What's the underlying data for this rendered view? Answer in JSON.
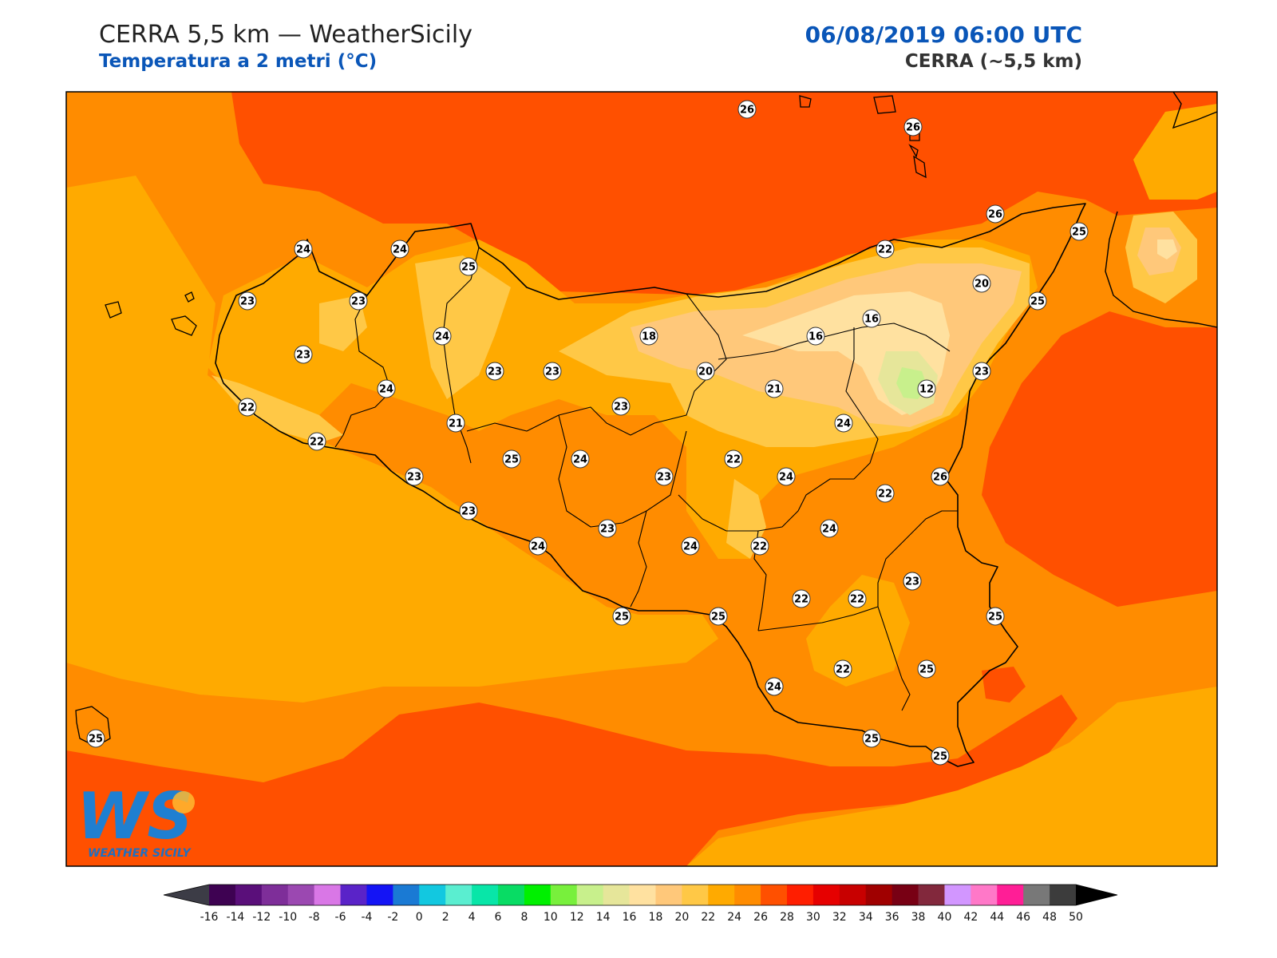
{
  "header": {
    "title": "CERRA 5,5 km — WeatherSicily",
    "subtitle": "Temperatura a 2 metri (°C)",
    "datetime": "06/08/2019 06:00 UTC",
    "model": "CERRA (~5,5 km)"
  },
  "logo": {
    "letters": "WS",
    "text": "WEATHER SICILY"
  },
  "stations": [
    {
      "value": "26"
    },
    {
      "value": "26"
    },
    {
      "value": "26"
    },
    {
      "value": "25"
    },
    {
      "value": "24"
    },
    {
      "value": "24"
    },
    {
      "value": "25"
    },
    {
      "value": "22"
    },
    {
      "value": "24"
    },
    {
      "value": "23"
    },
    {
      "value": "22"
    },
    {
      "value": "23"
    },
    {
      "value": "23"
    },
    {
      "value": "18"
    },
    {
      "value": "20"
    },
    {
      "value": "25"
    },
    {
      "value": "16"
    },
    {
      "value": "16"
    },
    {
      "value": "24"
    },
    {
      "value": "23"
    },
    {
      "value": "23"
    },
    {
      "value": "20"
    },
    {
      "value": "21"
    },
    {
      "value": "12"
    },
    {
      "value": "23"
    },
    {
      "value": "24"
    },
    {
      "value": "22"
    },
    {
      "value": "21"
    },
    {
      "value": "23"
    },
    {
      "value": "24"
    },
    {
      "value": "22"
    },
    {
      "value": "25"
    },
    {
      "value": "24"
    },
    {
      "value": "23"
    },
    {
      "value": "22"
    },
    {
      "value": "24"
    },
    {
      "value": "26"
    },
    {
      "value": "23"
    },
    {
      "value": "23"
    },
    {
      "value": "24"
    },
    {
      "value": "23"
    },
    {
      "value": "24"
    },
    {
      "value": "24"
    },
    {
      "value": "22"
    },
    {
      "value": "24"
    },
    {
      "value": "22"
    },
    {
      "value": "22"
    },
    {
      "value": "23"
    },
    {
      "value": "25"
    },
    {
      "value": "25"
    },
    {
      "value": "25"
    },
    {
      "value": "22"
    },
    {
      "value": "25"
    },
    {
      "value": "24"
    },
    {
      "value": "25"
    },
    {
      "value": "25"
    },
    {
      "value": "25"
    }
  ],
  "colorbar": {
    "labels": [
      "-16",
      "-14",
      "-12",
      "-10",
      "-8",
      "-6",
      "-4",
      "-2",
      "0",
      "2",
      "4",
      "6",
      "8",
      "10",
      "12",
      "14",
      "16",
      "18",
      "20",
      "22",
      "24",
      "26",
      "28",
      "30",
      "32",
      "34",
      "36",
      "38",
      "40",
      "42",
      "44",
      "46",
      "48",
      "50"
    ],
    "colors": [
      "#3e0252",
      "#5a0f7a",
      "#7e2e99",
      "#9b48b1",
      "#d977e6",
      "#5a23c8",
      "#1414f5",
      "#1a7ad4",
      "#12c8e0",
      "#5aeed0",
      "#08e6a8",
      "#08dc64",
      "#00f000",
      "#78f03c",
      "#c8f08c",
      "#e6e69a",
      "#ffe1a0",
      "#ffc87a",
      "#ffc846",
      "#ffaa00",
      "#ff8c00",
      "#ff5000",
      "#ff1e00",
      "#e60000",
      "#c80000",
      "#a00000",
      "#780014",
      "#82283c",
      "#d296ff",
      "#ff78c8",
      "#ff1e96",
      "#787878",
      "#3c3c3c"
    ],
    "under_color": "#3c3c46",
    "over_color": "#000000"
  }
}
